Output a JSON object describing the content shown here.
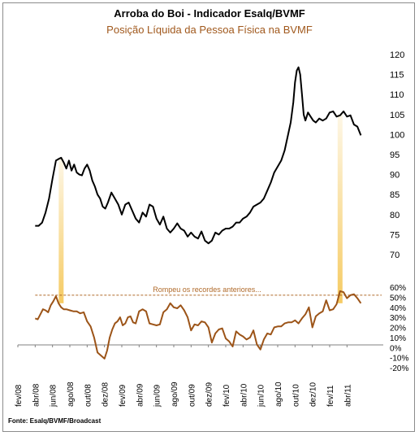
{
  "title": "Arroba do Boi - Indicador Esalq/BVMF",
  "subtitle": "Posição Líquida da Pessoa Física na BVMF",
  "source": "Fonte: Esalq/BVMF/Broadcast",
  "colors": {
    "price_line": "#000000",
    "position_line": "#9c5418",
    "highlight": "#f5c85a",
    "reference_line": "#b06a2a",
    "annotation": "#b06a2a"
  },
  "chart_data": [
    {
      "type": "line",
      "title": "Arroba do Boi - Indicador Esalq/BVMF",
      "ylim": [
        70,
        120
      ],
      "y_ticks": [
        "70",
        "75",
        "80",
        "85",
        "90",
        "95",
        "100",
        "105",
        "110",
        "115",
        "120"
      ],
      "x_ticks": [
        "fev/08",
        "abr/08",
        "jun/08",
        "ago/08",
        "out/08",
        "dez/08",
        "fev/09",
        "abr/09",
        "jun/09",
        "ago/09",
        "out/09",
        "dez/09",
        "fev/10",
        "abr/10",
        "jun/10",
        "ago/10",
        "out/10",
        "dez/10",
        "fev/11",
        "abr/11"
      ],
      "x_range": [
        0,
        42
      ],
      "x": [
        2.0,
        2.4,
        2.8,
        3.2,
        3.6,
        4.0,
        4.4,
        4.8,
        5.0,
        5.3,
        5.6,
        5.9,
        6.2,
        6.5,
        6.8,
        7.1,
        7.4,
        7.7,
        8.0,
        8.3,
        8.6,
        8.9,
        9.2,
        9.5,
        9.8,
        10.1,
        10.4,
        10.8,
        11.2,
        11.6,
        12.0,
        12.4,
        12.8,
        13.2,
        13.6,
        14.0,
        14.4,
        14.8,
        15.2,
        15.6,
        16.0,
        16.4,
        16.8,
        17.2,
        17.6,
        18.0,
        18.4,
        18.8,
        19.2,
        19.6,
        20.0,
        20.4,
        20.8,
        21.2,
        21.6,
        22.0,
        22.4,
        22.8,
        23.2,
        23.6,
        24.0,
        24.4,
        24.8,
        25.2,
        25.6,
        26.0,
        26.4,
        26.8,
        27.2,
        27.6,
        28.0,
        28.4,
        28.8,
        29.2,
        29.6,
        30.0,
        30.4,
        30.8,
        31.2,
        31.5,
        31.8,
        32.0,
        32.2,
        32.4,
        32.6,
        32.8,
        33.0,
        33.2,
        33.5,
        33.8,
        34.1,
        34.4,
        34.8,
        35.2,
        35.6,
        36.0,
        36.4,
        36.8,
        37.2,
        37.6,
        38.0,
        38.4,
        38.8,
        39.2,
        39.6
      ],
      "series": [
        {
          "values": [
            77.2,
            77.2,
            78.0,
            80.5,
            84.0,
            89.0,
            93.5,
            94.0,
            94.2,
            93.0,
            91.5,
            93.5,
            91.0,
            92.5,
            90.5,
            90.0,
            89.8,
            91.5,
            92.5,
            91.0,
            88.5,
            87.0,
            85.0,
            84.0,
            82.0,
            81.5,
            83.0,
            85.5,
            84.0,
            82.5,
            80.0,
            82.5,
            83.0,
            81.0,
            79.0,
            78.0,
            80.5,
            79.5,
            82.5,
            82.0,
            79.0,
            77.5,
            79.5,
            76.5,
            75.5,
            76.5,
            77.8,
            76.5,
            76.0,
            74.5,
            75.5,
            74.5,
            74.0,
            75.8,
            73.5,
            72.8,
            73.5,
            75.5,
            75.0,
            76.0,
            76.5,
            76.5,
            77.0,
            78.0,
            78.0,
            79.0,
            79.5,
            80.5,
            82.0,
            82.5,
            83.0,
            84.0,
            86.0,
            88.0,
            90.5,
            92.0,
            93.5,
            96.0,
            100.0,
            103.0,
            108.0,
            113.0,
            116.0,
            116.8,
            115.0,
            110.0,
            105.0,
            103.5,
            105.5,
            104.5,
            103.5,
            103.0,
            104.0,
            103.5,
            104.0,
            105.5,
            105.8,
            104.5,
            104.8,
            105.8,
            104.5,
            104.8,
            102.5,
            102.0,
            99.8
          ]
        }
      ]
    },
    {
      "type": "line",
      "title": "Posição Líquida da Pessoa Física na BVMF",
      "ylim": [
        -20,
        60
      ],
      "y_ticks": [
        "-20%",
        "-10%",
        "0%",
        "10%",
        "20%",
        "30%",
        "40%",
        "50%",
        "60%"
      ],
      "x_range": [
        0,
        42
      ],
      "x": [
        2.0,
        2.3,
        2.6,
        2.9,
        3.2,
        3.5,
        3.8,
        4.1,
        4.4,
        4.7,
        5.0,
        5.3,
        5.6,
        6.0,
        6.4,
        6.8,
        7.2,
        7.6,
        8.0,
        8.4,
        8.8,
        9.2,
        9.6,
        10.0,
        10.3,
        10.6,
        10.9,
        11.2,
        11.5,
        11.8,
        12.1,
        12.4,
        12.7,
        13.0,
        13.3,
        13.6,
        14.0,
        14.4,
        14.8,
        15.2,
        15.6,
        16.0,
        16.4,
        16.8,
        17.2,
        17.6,
        18.0,
        18.4,
        18.8,
        19.2,
        19.6,
        20.0,
        20.4,
        20.8,
        21.2,
        21.6,
        22.0,
        22.4,
        22.8,
        23.2,
        23.6,
        24.0,
        24.4,
        24.8,
        25.2,
        25.6,
        26.0,
        26.4,
        26.8,
        27.2,
        27.6,
        28.0,
        28.4,
        28.8,
        29.2,
        29.6,
        30.0,
        30.4,
        30.8,
        31.2,
        31.6,
        32.0,
        32.4,
        32.8,
        33.2,
        33.6,
        34.0,
        34.4,
        34.8,
        35.2,
        35.6,
        36.0,
        36.4,
        36.8,
        37.2,
        37.6,
        38.0,
        38.4,
        38.8,
        39.2,
        39.6
      ],
      "series": [
        {
          "values": [
            29,
            28,
            33,
            38,
            37,
            35,
            42,
            46,
            51,
            44,
            40,
            38,
            38,
            37,
            36,
            36,
            34,
            35,
            26,
            21,
            10,
            -5,
            -8,
            -11,
            -3,
            10,
            18,
            24,
            26,
            30,
            22,
            24,
            30,
            31,
            25,
            24,
            36,
            38,
            36,
            24,
            23,
            22,
            23,
            35,
            38,
            44,
            40,
            39,
            42,
            37,
            30,
            17,
            23,
            22,
            26,
            25,
            20,
            5,
            14,
            18,
            19,
            9,
            6,
            1,
            16,
            13,
            11,
            8,
            10,
            17,
            3,
            -2,
            8,
            14,
            13,
            20,
            21,
            21,
            24,
            25,
            25,
            27,
            24,
            29,
            33,
            40,
            20,
            31,
            34,
            36,
            47,
            37,
            38,
            43,
            56,
            55,
            49,
            52,
            53,
            49,
            44
          ]
        }
      ],
      "reference_line": {
        "y": 52,
        "label": "Rompeu os recordes anteriores..."
      },
      "highlights_x": [
        5.0,
        37.2
      ]
    }
  ]
}
